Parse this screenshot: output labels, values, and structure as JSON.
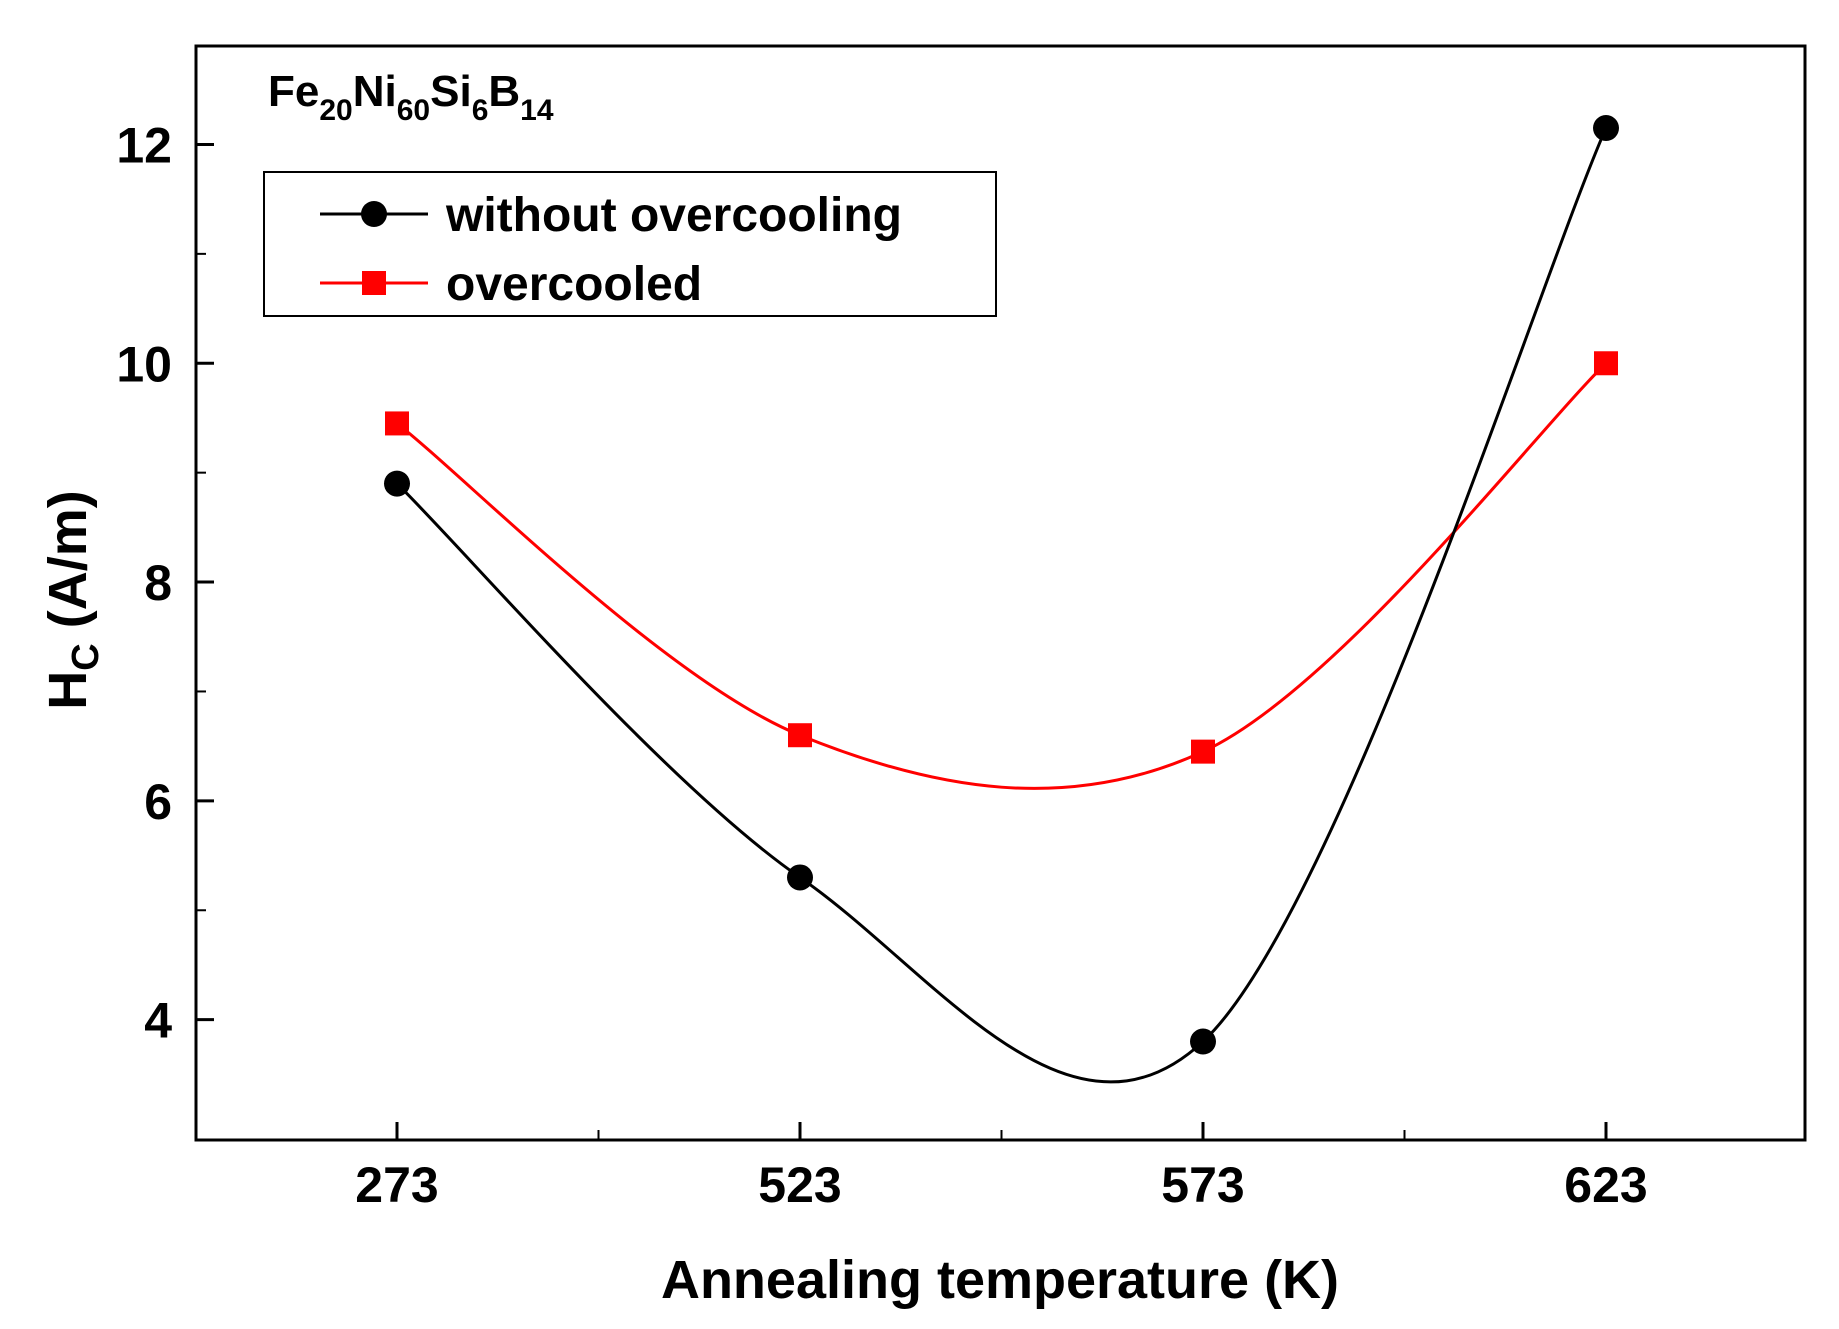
{
  "chart_data": {
    "type": "line",
    "title": "",
    "xlabel": "Annealing temperature (K)",
    "ylabel_main": "H",
    "ylabel_sub": "C",
    "ylabel_unit": " (A/m)",
    "categories": [
      "273",
      "523",
      "573",
      "623"
    ],
    "ylim": [
      2.9,
      12.9
    ],
    "yticks": [
      4,
      6,
      8,
      10,
      12
    ],
    "ytick_labels": [
      "4",
      "6",
      "8",
      "10",
      "12"
    ],
    "grid": false,
    "legend_position": "top-left",
    "annotation": {
      "parts": [
        {
          "text": "Fe",
          "sub": false
        },
        {
          "text": "20",
          "sub": true
        },
        {
          "text": "Ni",
          "sub": false
        },
        {
          "text": "60",
          "sub": true
        },
        {
          "text": "Si",
          "sub": false
        },
        {
          "text": "6",
          "sub": true
        },
        {
          "text": "B",
          "sub": false
        },
        {
          "text": "14",
          "sub": true
        }
      ]
    },
    "series": [
      {
        "name": "without overcooling",
        "color": "#000000",
        "marker": "circle",
        "values": [
          8.9,
          5.3,
          3.8,
          12.15
        ]
      },
      {
        "name": "overcooled",
        "color": "#ff0000",
        "marker": "square",
        "values": [
          9.45,
          6.6,
          6.45,
          10.0
        ]
      }
    ]
  }
}
